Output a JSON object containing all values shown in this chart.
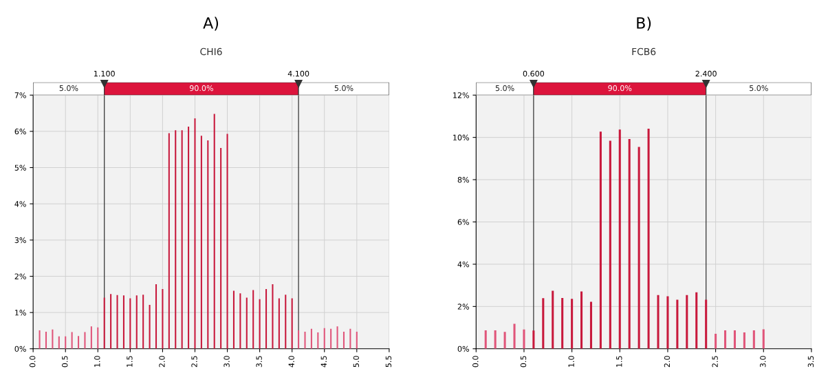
{
  "chart_data": [
    {
      "type": "bar",
      "title": "A)",
      "subtitle": "CHI6",
      "x": [
        0.1,
        0.2,
        0.3,
        0.4,
        0.5,
        0.6,
        0.7,
        0.8,
        0.9,
        1.0,
        1.1,
        1.2,
        1.3,
        1.4,
        1.5,
        1.6,
        1.7,
        1.8,
        1.9,
        2.0,
        2.1,
        2.2,
        2.3,
        2.4,
        2.5,
        2.6,
        2.7,
        2.8,
        2.9,
        3.0,
        3.1,
        3.2,
        3.3,
        3.4,
        3.5,
        3.6,
        3.7,
        3.8,
        3.9,
        4.0,
        4.1,
        4.2,
        4.3,
        4.4,
        4.5,
        4.6,
        4.7,
        4.8,
        4.9,
        5.0
      ],
      "values": [
        0.51,
        0.47,
        0.53,
        0.34,
        0.34,
        0.46,
        0.35,
        0.46,
        0.62,
        0.59,
        1.41,
        1.51,
        1.48,
        1.47,
        1.39,
        1.47,
        1.49,
        1.21,
        1.78,
        1.65,
        5.95,
        6.03,
        6.03,
        6.13,
        6.36,
        5.88,
        5.75,
        6.48,
        5.54,
        5.93,
        1.6,
        1.53,
        1.41,
        1.62,
        1.37,
        1.65,
        1.78,
        1.39,
        1.49,
        1.39,
        0.51,
        0.47,
        0.55,
        0.45,
        0.57,
        0.55,
        0.62,
        0.47,
        0.55,
        0.47
      ],
      "colors": [
        "#e0557a",
        "#e0557a",
        "#e0557a",
        "#e0557a",
        "#e0557a",
        "#e0557a",
        "#e0557a",
        "#e0557a",
        "#e0557a",
        "#e0557a",
        "#c8193c",
        "#c8193c",
        "#c8193c",
        "#c8193c",
        "#c8193c",
        "#c8193c",
        "#c8193c",
        "#c8193c",
        "#c8193c",
        "#c8193c",
        "#c8193c",
        "#c8193c",
        "#c8193c",
        "#c8193c",
        "#c8193c",
        "#c8193c",
        "#c8193c",
        "#c8193c",
        "#c8193c",
        "#c8193c",
        "#c8193c",
        "#c8193c",
        "#c8193c",
        "#c8193c",
        "#c8193c",
        "#c8193c",
        "#c8193c",
        "#c8193c",
        "#c8193c",
        "#c8193c",
        "#e0557a",
        "#e0557a",
        "#e0557a",
        "#e0557a",
        "#e0557a",
        "#e0557a",
        "#e0557a",
        "#e0557a",
        "#e0557a",
        "#e0557a"
      ],
      "xlim": [
        0,
        5.5
      ],
      "xticks": [
        {
          "value": 0,
          "label": "0.0"
        },
        {
          "value": 0.5,
          "label": "0.5"
        },
        {
          "value": 1,
          "label": "1.0"
        },
        {
          "value": 1.5,
          "label": "1.5"
        },
        {
          "value": 2,
          "label": "2.0"
        },
        {
          "value": 2.5,
          "label": "2.5"
        },
        {
          "value": 3,
          "label": "3.0"
        },
        {
          "value": 3.5,
          "label": "3.5"
        },
        {
          "value": 4,
          "label": "4.0"
        },
        {
          "value": 4.5,
          "label": "4.5"
        },
        {
          "value": 5,
          "label": "5.0"
        },
        {
          "value": 5.5,
          "label": "5.5"
        }
      ],
      "ylim": [
        0,
        7
      ],
      "yticks": [
        {
          "value": 0,
          "label": "0%"
        },
        {
          "value": 1,
          "label": "1%"
        },
        {
          "value": 2,
          "label": "2%"
        },
        {
          "value": 3,
          "label": "3%"
        },
        {
          "value": 4,
          "label": "4%"
        },
        {
          "value": 5,
          "label": "5%"
        },
        {
          "value": 6,
          "label": "6%"
        },
        {
          "value": 7,
          "label": "7%"
        }
      ],
      "grid": true,
      "ref_lines": [
        {
          "axis": "x",
          "value": 1.1,
          "label": "1.100",
          "color": "#333333"
        },
        {
          "axis": "x",
          "value": 4.1,
          "label": "4.100",
          "color": "#333333"
        }
      ],
      "annotations": [
        "5.0%",
        "90.0%",
        "5.0%"
      ]
    },
    {
      "type": "bar",
      "title": "B)",
      "subtitle": "FCB6",
      "x": [
        0.1,
        0.2,
        0.3,
        0.4,
        0.5,
        0.6,
        0.7,
        0.8,
        0.9,
        1.0,
        1.1,
        1.2,
        1.3,
        1.4,
        1.5,
        1.6,
        1.7,
        1.8,
        1.9,
        2.0,
        2.1,
        2.2,
        2.3,
        2.4,
        2.5,
        2.6,
        2.7,
        2.8,
        2.9,
        3.0
      ],
      "values": [
        0.87,
        0.87,
        0.8,
        1.18,
        0.91,
        0.86,
        2.39,
        2.74,
        2.4,
        2.36,
        2.71,
        2.22,
        10.27,
        9.84,
        10.37,
        9.92,
        9.55,
        10.41,
        2.54,
        2.48,
        2.32,
        2.54,
        2.67,
        2.32,
        0.71,
        0.87,
        0.87,
        0.77,
        0.87,
        0.92
      ],
      "colors": [
        "#e0557a",
        "#e0557a",
        "#e0557a",
        "#e0557a",
        "#e0557a",
        "#c8193c",
        "#c8193c",
        "#c8193c",
        "#c8193c",
        "#c8193c",
        "#c8193c",
        "#c8193c",
        "#c8193c",
        "#c8193c",
        "#c8193c",
        "#c8193c",
        "#c8193c",
        "#c8193c",
        "#c8193c",
        "#c8193c",
        "#c8193c",
        "#c8193c",
        "#c8193c",
        "#c8193c",
        "#e0557a",
        "#e0557a",
        "#e0557a",
        "#e0557a",
        "#e0557a",
        "#e0557a"
      ],
      "xlim": [
        0,
        3.5
      ],
      "xticks": [
        {
          "value": 0,
          "label": "0.0"
        },
        {
          "value": 0.5,
          "label": "0.5"
        },
        {
          "value": 1,
          "label": "1.0"
        },
        {
          "value": 1.5,
          "label": "1.5"
        },
        {
          "value": 2,
          "label": "2.0"
        },
        {
          "value": 2.5,
          "label": "2.5"
        },
        {
          "value": 3,
          "label": "3.0"
        },
        {
          "value": 3.5,
          "label": "3.5"
        }
      ],
      "ylim": [
        0,
        12
      ],
      "yticks": [
        {
          "value": 0,
          "label": "0%"
        },
        {
          "value": 2,
          "label": "2%"
        },
        {
          "value": 4,
          "label": "4%"
        },
        {
          "value": 6,
          "label": "6%"
        },
        {
          "value": 8,
          "label": "8%"
        },
        {
          "value": 10,
          "label": "10%"
        },
        {
          "value": 12,
          "label": "12%"
        }
      ],
      "grid": true,
      "ref_lines": [
        {
          "axis": "x",
          "value": 0.6,
          "label": "0.600",
          "color": "#333333"
        },
        {
          "axis": "x",
          "value": 2.4,
          "label": "2.400",
          "color": "#333333"
        }
      ],
      "annotations": [
        "5.0%",
        "90.0%",
        "5.0%"
      ]
    }
  ]
}
